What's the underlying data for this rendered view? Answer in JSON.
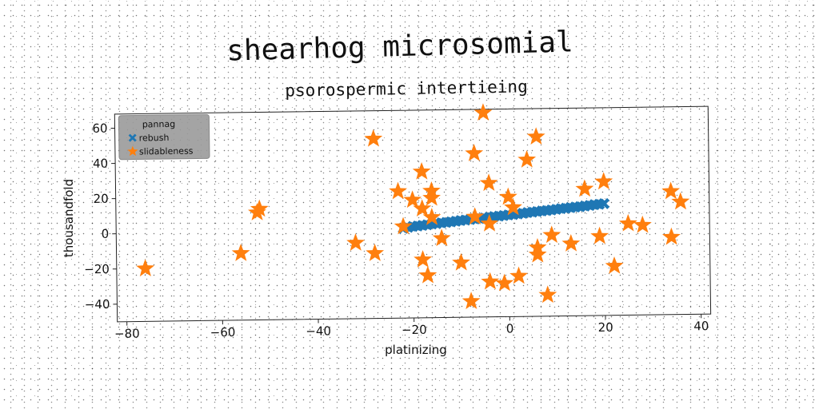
{
  "chart_data": {
    "type": "scatter",
    "title": "shearhog microsomial",
    "subtitle": "psorospermic intertieing",
    "xlabel": "platinizing",
    "ylabel": "thousandfold",
    "xlim": [
      -82,
      42
    ],
    "ylim": [
      -50,
      68
    ],
    "xticks": [
      -80,
      -60,
      -40,
      -20,
      0,
      20,
      40
    ],
    "yticks": [
      -40,
      -20,
      0,
      20,
      40,
      60
    ],
    "grid": false,
    "legend": {
      "title": "pannag",
      "placement": "top-left"
    },
    "series": [
      {
        "name": "rebush",
        "marker": "X",
        "color": "#1f77b4",
        "points": [
          [
            -22,
            1
          ],
          [
            -21,
            1.5
          ],
          [
            -20,
            2
          ],
          [
            -19,
            2.2
          ],
          [
            -18,
            2.5
          ],
          [
            -17,
            2.8
          ],
          [
            -16,
            3.2
          ],
          [
            -15,
            3.5
          ],
          [
            -14,
            3.8
          ],
          [
            -13,
            4
          ],
          [
            -12,
            4.3
          ],
          [
            -11,
            4.6
          ],
          [
            -10,
            5
          ],
          [
            -9,
            5.2
          ],
          [
            -8,
            5.5
          ],
          [
            -7,
            5.8
          ],
          [
            -6,
            6
          ],
          [
            -5,
            6.3
          ],
          [
            -4,
            6.6
          ],
          [
            -3,
            7
          ],
          [
            -2,
            7.2
          ],
          [
            -1,
            7.5
          ],
          [
            0,
            7.8
          ],
          [
            1,
            8
          ],
          [
            2,
            8.3
          ],
          [
            3,
            8.6
          ],
          [
            4,
            9
          ],
          [
            5,
            9.2
          ],
          [
            6,
            9.5
          ],
          [
            7,
            9.8
          ],
          [
            8,
            10
          ],
          [
            9,
            10.3
          ],
          [
            10,
            10.6
          ],
          [
            11,
            11
          ],
          [
            12,
            11.2
          ],
          [
            13,
            11.5
          ],
          [
            14,
            11.8
          ],
          [
            15,
            12
          ],
          [
            16,
            12.3
          ],
          [
            17,
            12.6
          ],
          [
            18,
            13
          ],
          [
            19,
            13.2
          ],
          [
            20,
            13.5
          ]
        ]
      },
      {
        "name": "slidableness",
        "marker": "*",
        "color": "#ff7f0e",
        "points": [
          [
            -76,
            -20
          ],
          [
            -56,
            -12
          ],
          [
            -52.5,
            11
          ],
          [
            -52,
            13
          ],
          [
            -32,
            -7
          ],
          [
            -28,
            -13
          ],
          [
            -28,
            52
          ],
          [
            -23,
            22
          ],
          [
            -22,
            2
          ],
          [
            -20,
            17
          ],
          [
            -18,
            -17
          ],
          [
            -18,
            12
          ],
          [
            -18,
            33
          ],
          [
            -17,
            -26
          ],
          [
            -16,
            18
          ],
          [
            -16,
            22
          ],
          [
            -16,
            7
          ],
          [
            -14,
            -5
          ],
          [
            -10,
            -19
          ],
          [
            -8,
            -41
          ],
          [
            -7,
            43
          ],
          [
            -7,
            7
          ],
          [
            -5,
            66
          ],
          [
            -4,
            3
          ],
          [
            -4,
            26
          ],
          [
            -4,
            -30
          ],
          [
            -1,
            -31
          ],
          [
            0,
            18
          ],
          [
            1,
            12
          ],
          [
            2,
            -27
          ],
          [
            4,
            39
          ],
          [
            6,
            52
          ],
          [
            6,
            -15
          ],
          [
            6,
            -11
          ],
          [
            8,
            -38
          ],
          [
            9,
            -4
          ],
          [
            13,
            -9
          ],
          [
            16,
            22
          ],
          [
            19,
            -5
          ],
          [
            20,
            26
          ],
          [
            22,
            -22
          ],
          [
            25,
            2
          ],
          [
            28,
            1
          ],
          [
            34,
            20
          ],
          [
            34,
            -6
          ],
          [
            36,
            14
          ]
        ]
      }
    ]
  }
}
